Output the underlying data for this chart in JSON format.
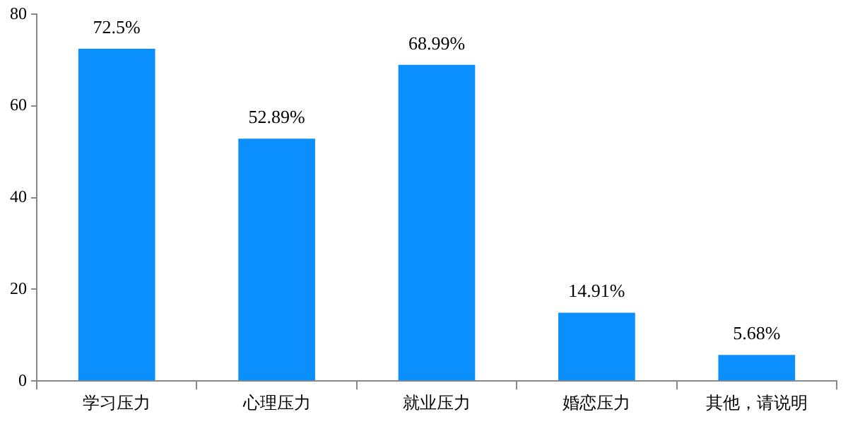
{
  "chart_data": {
    "type": "bar",
    "categories": [
      "学习压力",
      "心理压力",
      "就业压力",
      "婚恋压力",
      "其他，请说明"
    ],
    "values": [
      72.5,
      52.89,
      68.99,
      14.91,
      5.68
    ],
    "value_labels": [
      "72.5%",
      "52.89%",
      "68.99%",
      "14.91%",
      "5.68%"
    ],
    "color": "#0a8ffc",
    "ylim": [
      0,
      80
    ],
    "yticks": [
      0,
      20,
      40,
      60,
      80
    ],
    "grid": false,
    "legend": false
  }
}
